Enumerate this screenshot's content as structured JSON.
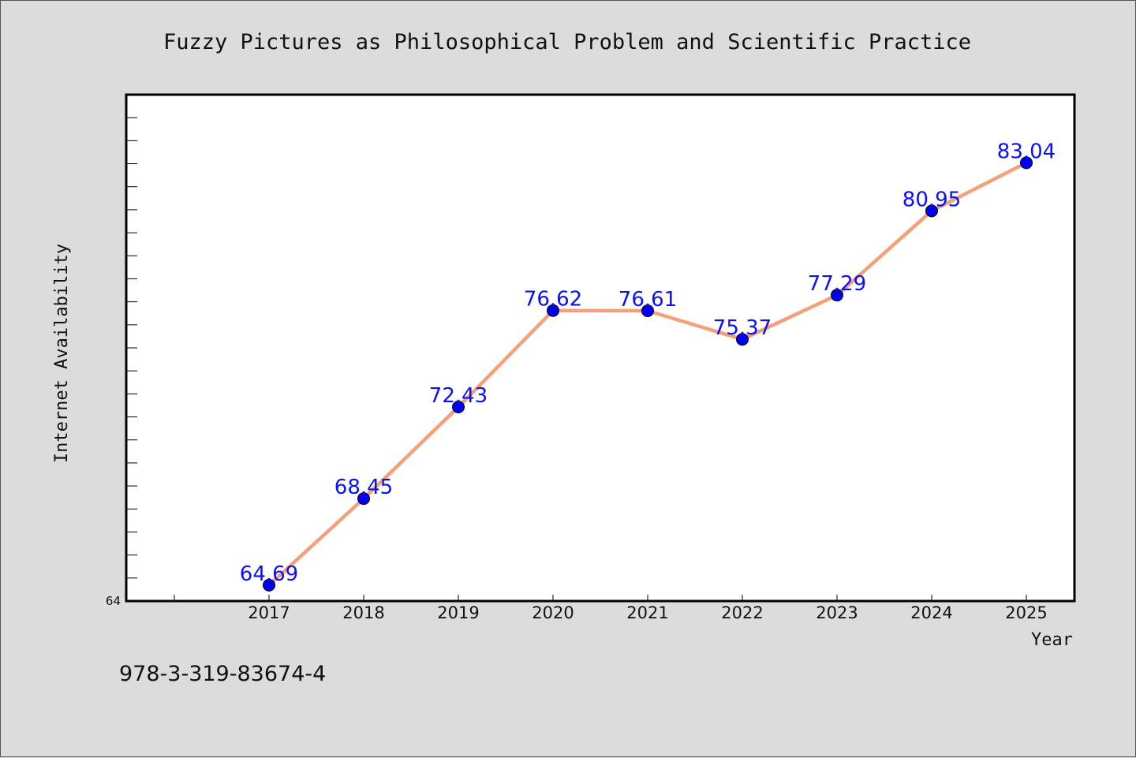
{
  "colors": {
    "background": "#dcdcdc",
    "plot_background": "#ffffff",
    "line": "#f4a07a",
    "marker_fill": "#0000ee",
    "label": "#0a10ff"
  },
  "footer": {
    "isbn": "978-3-319-83674-4"
  },
  "chart_data": {
    "type": "line",
    "title": "Fuzzy Pictures as Philosophical Problem and Scientific Practice",
    "xlabel": "Year",
    "ylabel": "Internet Availability",
    "categories": [
      "2017",
      "2018",
      "2019",
      "2020",
      "2021",
      "2022",
      "2023",
      "2024",
      "2025"
    ],
    "series": [
      {
        "values": [
          64.69,
          68.45,
          72.43,
          76.62,
          76.61,
          75.37,
          77.29,
          80.95,
          83.04
        ]
      }
    ],
    "data_labels": [
      "64.69",
      "68.45",
      "72.43",
      "76.62",
      "76.61",
      "75.37",
      "77.29",
      "80.95",
      "83.04"
    ],
    "ylim": [
      64,
      86
    ],
    "ytick_labels": [
      "64"
    ],
    "grid": false,
    "legend": "none"
  }
}
